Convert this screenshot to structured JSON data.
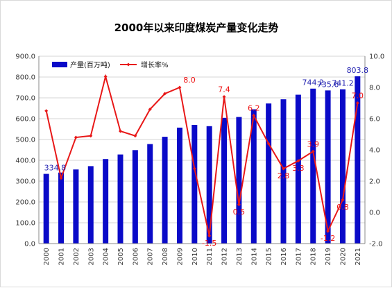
{
  "chart_data": {
    "type": "bar",
    "title": "2000年以来印度煤炭产量变化走势",
    "categories": [
      "2000",
      "2001",
      "2002",
      "2003",
      "2004",
      "2005",
      "2006",
      "2007",
      "2008",
      "2009",
      "2010",
      "2011",
      "2012",
      "2013",
      "2014",
      "2015",
      "2016",
      "2017",
      "2018",
      "2019",
      "2020",
      "2021"
    ],
    "series": [
      {
        "name": "产量(百万吨)",
        "type": "bar",
        "axis": "left",
        "color": "#0a0ac8",
        "values": [
          334.8,
          341,
          356,
          372,
          406,
          428,
          449,
          478,
          513,
          557,
          570,
          564,
          604,
          608,
          645,
          673,
          693,
          715,
          744.2,
          735.6,
          741.2,
          803.8
        ],
        "labels": {
          "0": "334.8",
          "18": "744.2",
          "19": "735.6",
          "20": "741.2",
          "21": "803.8"
        }
      },
      {
        "name": "增长率%",
        "type": "line",
        "axis": "right",
        "color": "#e81818",
        "values": [
          6.5,
          2.2,
          4.8,
          4.9,
          8.7,
          5.2,
          4.9,
          6.6,
          7.6,
          8.0,
          2.8,
          -1.5,
          7.4,
          0.5,
          6.2,
          4.4,
          2.8,
          3.3,
          3.9,
          -1.2,
          0.8,
          7.0
        ],
        "labels": {
          "9": "8.0",
          "11": "-1.5",
          "12": "7.4",
          "13": "0.5",
          "14": "6.2",
          "16": "2.8",
          "17": "3.3",
          "18": "3.9",
          "19": "-1.2",
          "20": "0.8",
          "21": "7.0"
        }
      }
    ],
    "y_left": {
      "min": 0,
      "max": 900,
      "step": 100,
      "decimals": 1
    },
    "y_right": {
      "min": -2,
      "max": 10,
      "step": 2,
      "decimals": 1
    },
    "grid": true,
    "legend": "top-left"
  }
}
